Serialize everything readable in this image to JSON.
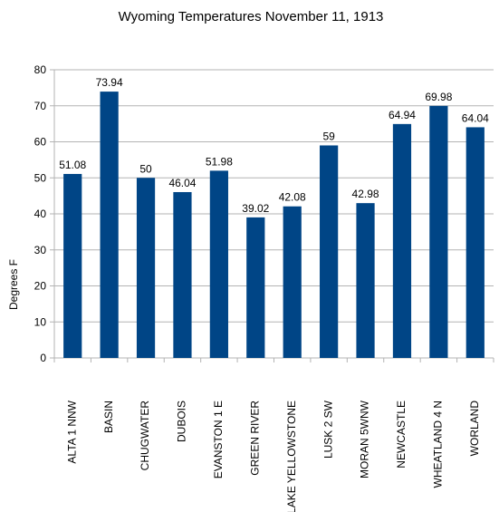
{
  "chart_data": {
    "type": "bar",
    "title": "Wyoming Temperatures November 11, 1913",
    "ylabel": "Degrees F",
    "xlabel": "",
    "ylim": [
      0,
      80
    ],
    "yticks": [
      0,
      10,
      20,
      30,
      40,
      50,
      60,
      70,
      80
    ],
    "grid": true,
    "legend": "none",
    "bar_color": "#004586",
    "categories": [
      "ALTA 1 NNW",
      "BASIN",
      "CHUGWATER",
      "DUBOIS",
      "EVANSTON 1 E",
      "GREEN RIVER",
      "LAKE YELLOWSTONE",
      "LUSK 2 SW",
      "MORAN 5WNW",
      "NEWCASTLE",
      "WHEATLAND 4 N",
      "WORLAND"
    ],
    "values": [
      51.08,
      73.94,
      50,
      46.04,
      51.98,
      39.02,
      42.08,
      59,
      42.98,
      64.94,
      69.98,
      64.04
    ],
    "value_labels": [
      "51.08",
      "73.94",
      "50",
      "46.04",
      "51.98",
      "39.02",
      "42.08",
      "59",
      "42.98",
      "64.94",
      "69.98",
      "64.04"
    ]
  }
}
